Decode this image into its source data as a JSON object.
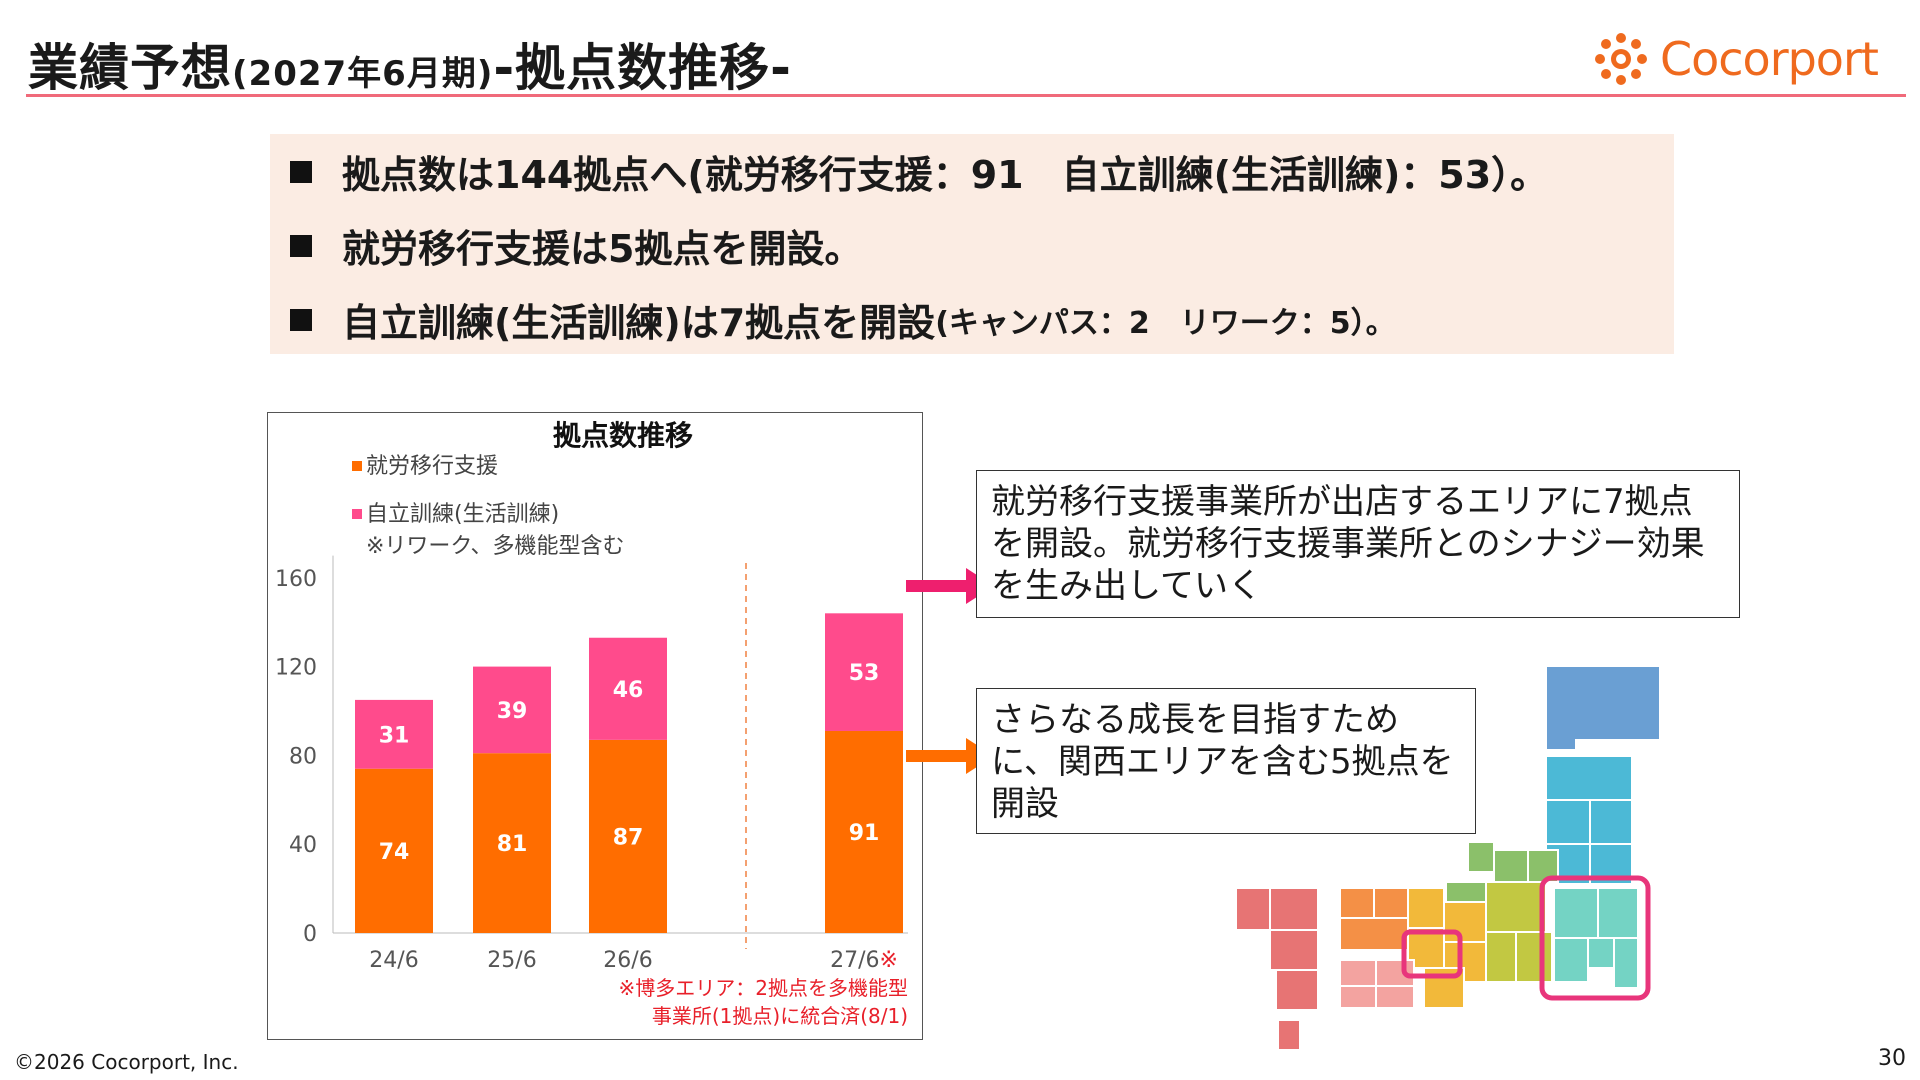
{
  "header": {
    "title_main": "業績予想",
    "title_sub": "(2027年6月期)",
    "title_tail": "-拠点数推移-",
    "logo_text": "Cocorport"
  },
  "summary": {
    "bullets": [
      "拠点数は144拠点へ(就労移行支援：91　自立訓練(生活訓練)：53）。",
      "就労移行支援は5拠点を開設。",
      "自立訓練(生活訓練)は7拠点を開設"
    ],
    "bullet3_small": "(キャンパス：2　リワーク：5）。"
  },
  "chart_data": {
    "type": "bar",
    "title": "拠点数推移",
    "categories": [
      "24/6",
      "25/6",
      "26/6",
      "27/6※"
    ],
    "series": [
      {
        "name": "就労移行支援",
        "values": [
          74,
          81,
          87,
          91
        ],
        "color": "#ff6d00"
      },
      {
        "name": "自立訓練(生活訓練)",
        "values": [
          31,
          39,
          46,
          53
        ],
        "color": "#ff4b8c"
      }
    ],
    "legend_note": "※リワーク、多機能型含む",
    "yticks": [
      0,
      40,
      80,
      120,
      160
    ],
    "ylim": [
      0,
      170
    ],
    "note_line1": "※博多エリア：2拠点を多機能型",
    "note_line2": "事業所(1拠点)に統合済(8/1)",
    "note_color": "#e8202a"
  },
  "callouts": {
    "top": "就労移行支援事業所が出店するエリアに7拠点を開設。就労移行支援事業所とのシナジー効果を生み出していく",
    "bottom": "さらなる成長を目指すために、関西エリアを含む5拠点を開設"
  },
  "footer": {
    "copyright": "©2026 Cocorport, Inc.",
    "page": "30"
  },
  "colors": {
    "accent_line": "#f06a7a",
    "arrow": "#ee1f6e",
    "highlight": "#e8357b"
  }
}
